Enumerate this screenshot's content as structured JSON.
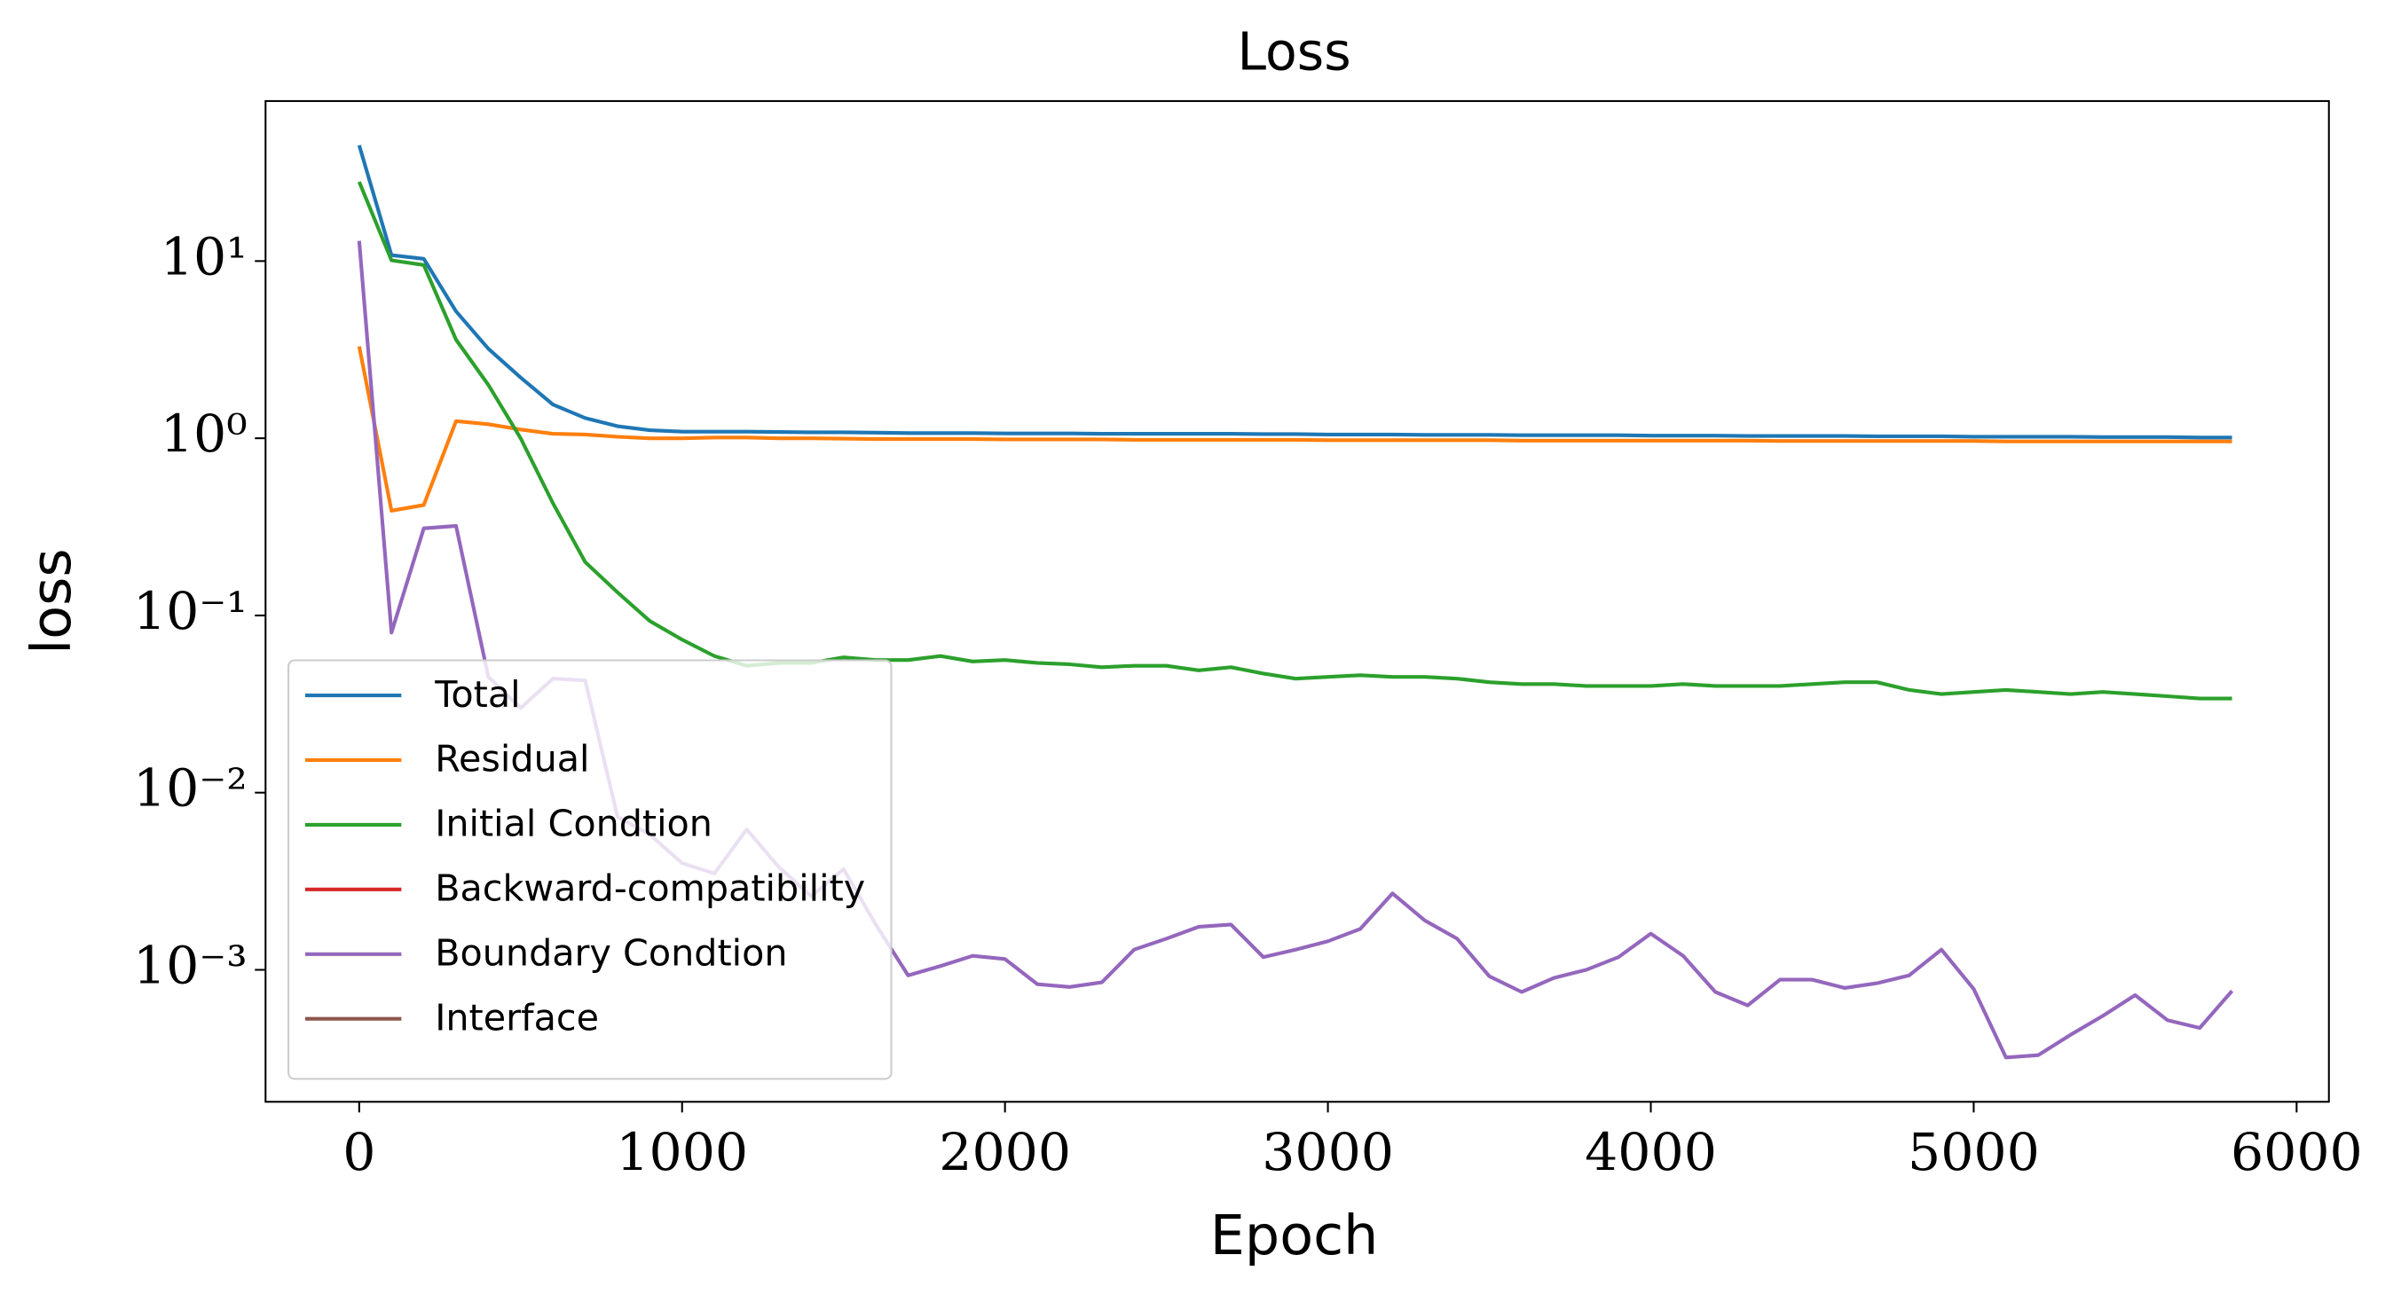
{
  "chart_data": {
    "type": "line",
    "title": "Loss",
    "x_label": "Epoch",
    "y_label": "loss",
    "log_y": true,
    "legend": "lower left",
    "xlim": [
      -290,
      6100
    ],
    "ylim": [
      0.00018,
      80
    ],
    "xticks": [
      0,
      1000,
      2000,
      3000,
      4000,
      5000,
      6000
    ],
    "yticks": [
      {
        "value": 10,
        "label": "10¹"
      },
      {
        "value": 1,
        "label": "10⁰"
      },
      {
        "value": 0.1,
        "label": "10⁻¹"
      },
      {
        "value": 0.01,
        "label": "10⁻²"
      },
      {
        "value": 0.001,
        "label": "10⁻³"
      }
    ],
    "x": [
      0,
      100,
      200,
      300,
      400,
      500,
      600,
      700,
      800,
      900,
      1000,
      1100,
      1200,
      1300,
      1400,
      1500,
      1600,
      1700,
      1800,
      1900,
      2000,
      2100,
      2200,
      2300,
      2400,
      2500,
      2600,
      2700,
      2800,
      2900,
      3000,
      3100,
      3200,
      3300,
      3400,
      3500,
      3600,
      3700,
      3800,
      3900,
      4000,
      4100,
      4200,
      4300,
      4400,
      4500,
      4600,
      4700,
      4800,
      4900,
      5000,
      5100,
      5200,
      5300,
      5400,
      5500,
      5600,
      5700,
      5800
    ],
    "series": [
      {
        "name": "Total",
        "color": "#1f77b4",
        "values": [
          45,
          10.8,
          10.3,
          5.2,
          3.2,
          2.2,
          1.55,
          1.3,
          1.17,
          1.11,
          1.09,
          1.09,
          1.09,
          1.085,
          1.08,
          1.08,
          1.075,
          1.07,
          1.07,
          1.07,
          1.065,
          1.065,
          1.065,
          1.06,
          1.06,
          1.06,
          1.06,
          1.06,
          1.055,
          1.055,
          1.05,
          1.05,
          1.05,
          1.045,
          1.045,
          1.045,
          1.04,
          1.04,
          1.04,
          1.04,
          1.035,
          1.035,
          1.035,
          1.03,
          1.03,
          1.03,
          1.03,
          1.025,
          1.025,
          1.025,
          1.02,
          1.02,
          1.02,
          1.02,
          1.015,
          1.015,
          1.015,
          1.01,
          1.01
        ]
      },
      {
        "name": "Residual",
        "color": "#ff7f0e",
        "values": [
          3.3,
          0.39,
          0.42,
          1.25,
          1.2,
          1.12,
          1.06,
          1.05,
          1.02,
          1.0,
          1.0,
          1.01,
          1.01,
          1.0,
          1.0,
          0.995,
          0.99,
          0.99,
          0.99,
          0.99,
          0.985,
          0.985,
          0.985,
          0.985,
          0.98,
          0.98,
          0.98,
          0.98,
          0.98,
          0.98,
          0.975,
          0.975,
          0.975,
          0.975,
          0.975,
          0.975,
          0.97,
          0.97,
          0.97,
          0.97,
          0.97,
          0.97,
          0.97,
          0.97,
          0.965,
          0.965,
          0.965,
          0.965,
          0.965,
          0.965,
          0.965,
          0.96,
          0.96,
          0.96,
          0.96,
          0.96,
          0.96,
          0.96,
          0.96
        ]
      },
      {
        "name": "Initial Condtion",
        "color": "#2ca02c",
        "values": [
          28,
          10.1,
          9.5,
          3.6,
          2.0,
          1.0,
          0.43,
          0.2,
          0.135,
          0.093,
          0.073,
          0.059,
          0.052,
          0.054,
          0.054,
          0.058,
          0.056,
          0.056,
          0.059,
          0.055,
          0.056,
          0.054,
          0.053,
          0.051,
          0.052,
          0.052,
          0.049,
          0.051,
          0.047,
          0.044,
          0.045,
          0.046,
          0.045,
          0.045,
          0.044,
          0.042,
          0.041,
          0.041,
          0.04,
          0.04,
          0.04,
          0.041,
          0.04,
          0.04,
          0.04,
          0.041,
          0.042,
          0.042,
          0.038,
          0.036,
          0.037,
          0.038,
          0.037,
          0.036,
          0.037,
          0.036,
          0.035,
          0.034,
          0.034
        ]
      },
      {
        "name": "Backward-compatibility",
        "color": "#d62728",
        "values": [
          null,
          null,
          null,
          null,
          null,
          null,
          null,
          null,
          null,
          null,
          null,
          null,
          null,
          null,
          null,
          null,
          null,
          null,
          null,
          null,
          null,
          null,
          null,
          null,
          null,
          null,
          null,
          null,
          null,
          null,
          null,
          null,
          null,
          null,
          null,
          null,
          null,
          null,
          null,
          null,
          null,
          null,
          null,
          null,
          null,
          null,
          null,
          null,
          null,
          null,
          null,
          null,
          null,
          null,
          null,
          null,
          null,
          null,
          null
        ]
      },
      {
        "name": "Boundary Condtion",
        "color": "#9467bd",
        "values": [
          13,
          0.08,
          0.31,
          0.32,
          0.045,
          0.03,
          0.044,
          0.043,
          0.0073,
          0.0058,
          0.004,
          0.0035,
          0.0062,
          0.0038,
          0.0026,
          0.0037,
          0.0018,
          0.00093,
          0.00105,
          0.0012,
          0.00115,
          0.00083,
          0.0008,
          0.00085,
          0.0013,
          0.0015,
          0.00175,
          0.0018,
          0.00118,
          0.0013,
          0.00145,
          0.0017,
          0.0027,
          0.0019,
          0.0015,
          0.00092,
          0.00075,
          0.0009,
          0.001,
          0.00118,
          0.0016,
          0.0012,
          0.00075,
          0.00063,
          0.00088,
          0.00088,
          0.00079,
          0.00084,
          0.00093,
          0.0013,
          0.00078,
          0.00032,
          0.00033,
          0.00043,
          0.00055,
          0.00072,
          0.00052,
          0.00047,
          0.00076
        ]
      },
      {
        "name": "Interface",
        "color": "#8c564b",
        "values": [
          null,
          null,
          null,
          null,
          null,
          null,
          null,
          null,
          null,
          null,
          null,
          null,
          null,
          null,
          null,
          null,
          null,
          null,
          null,
          null,
          null,
          null,
          null,
          null,
          null,
          null,
          null,
          null,
          null,
          null,
          null,
          null,
          null,
          null,
          null,
          null,
          null,
          null,
          null,
          null,
          null,
          null,
          null,
          null,
          null,
          null,
          null,
          null,
          null,
          null,
          null,
          null,
          null,
          null,
          null,
          null,
          null,
          null,
          null
        ]
      }
    ]
  }
}
